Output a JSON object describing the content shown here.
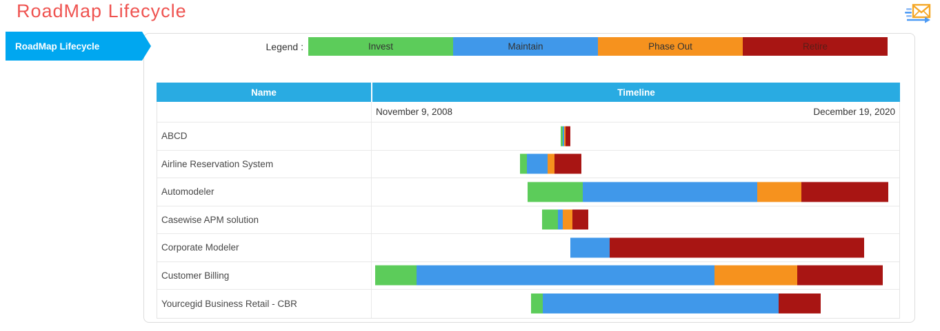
{
  "header": {
    "title": "RoadMap Lifecycle",
    "email_icon": "send-email-icon"
  },
  "sidebar": {
    "tab_label": "RoadMap Lifecycle"
  },
  "colors": {
    "title_red": "#EF5350",
    "tab_blue": "#00A7F0",
    "accent_cyan": "#29ABE2",
    "invest_green": "#5CCC5A",
    "maintain_blue": "#4098EA",
    "phaseout_orange": "#F6921E",
    "retire_red": "#A81513"
  },
  "legend": {
    "label": "Legend :",
    "items": [
      {
        "phase": "invest",
        "label": "Invest",
        "color": "#5CCC5A",
        "label_color": "#333333"
      },
      {
        "phase": "maintain",
        "label": "Maintain",
        "color": "#4098EA",
        "label_color": "#333333"
      },
      {
        "phase": "phaseout",
        "label": "Phase Out",
        "color": "#F6921E",
        "label_color": "#333333"
      },
      {
        "phase": "retire",
        "label": "Retire",
        "color": "#A81513",
        "label_color": "#5A1D18"
      }
    ]
  },
  "table": {
    "columns": [
      "Name",
      "Timeline"
    ],
    "timeline_start": "November 9, 2008",
    "timeline_end": "December 19, 2020",
    "rows": [
      {
        "name": "ABCD",
        "bar": {
          "offset_pct": 35.85,
          "segments": [
            {
              "phase": "invest",
              "width_pct": 0.39
            },
            {
              "phase": "maintain",
              "width_pct": 0.26
            },
            {
              "phase": "phaseout",
              "width_pct": 0.26
            },
            {
              "phase": "retire",
              "width_pct": 0.91
            }
          ]
        }
      },
      {
        "name": "Airline Reservation System",
        "bar": {
          "offset_pct": 28.16,
          "segments": [
            {
              "phase": "invest",
              "width_pct": 1.3
            },
            {
              "phase": "maintain",
              "width_pct": 3.91
            },
            {
              "phase": "phaseout",
              "width_pct": 1.3
            },
            {
              "phase": "retire",
              "width_pct": 5.08
            }
          ]
        }
      },
      {
        "name": "Automodeler",
        "bar": {
          "offset_pct": 29.6,
          "segments": [
            {
              "phase": "invest",
              "width_pct": 10.43
            },
            {
              "phase": "maintain",
              "width_pct": 32.99
            },
            {
              "phase": "phaseout",
              "width_pct": 8.47
            },
            {
              "phase": "retire",
              "width_pct": 16.43
            }
          ]
        }
      },
      {
        "name": "Casewise APM solution",
        "bar": {
          "offset_pct": 32.33,
          "segments": [
            {
              "phase": "invest",
              "width_pct": 3.0
            },
            {
              "phase": "maintain",
              "width_pct": 0.91
            },
            {
              "phase": "phaseout",
              "width_pct": 1.83
            },
            {
              "phase": "retire",
              "width_pct": 3.0
            }
          ]
        }
      },
      {
        "name": "Corporate Modeler",
        "bar": {
          "offset_pct": 37.68,
          "segments": [
            {
              "phase": "maintain",
              "width_pct": 7.43
            },
            {
              "phase": "retire",
              "width_pct": 48.24
            }
          ]
        }
      },
      {
        "name": "Customer Billing",
        "bar": {
          "offset_pct": 0.65,
          "segments": [
            {
              "phase": "invest",
              "width_pct": 7.82
            },
            {
              "phase": "maintain",
              "width_pct": 56.45
            },
            {
              "phase": "phaseout",
              "width_pct": 15.78
            },
            {
              "phase": "retire",
              "width_pct": 16.17
            }
          ]
        }
      },
      {
        "name": "Yourcegid Business Retail - CBR",
        "bar": {
          "offset_pct": 30.25,
          "segments": [
            {
              "phase": "invest",
              "width_pct": 2.22
            },
            {
              "phase": "maintain",
              "width_pct": 44.72
            },
            {
              "phase": "retire",
              "width_pct": 7.95
            }
          ]
        }
      }
    ]
  }
}
